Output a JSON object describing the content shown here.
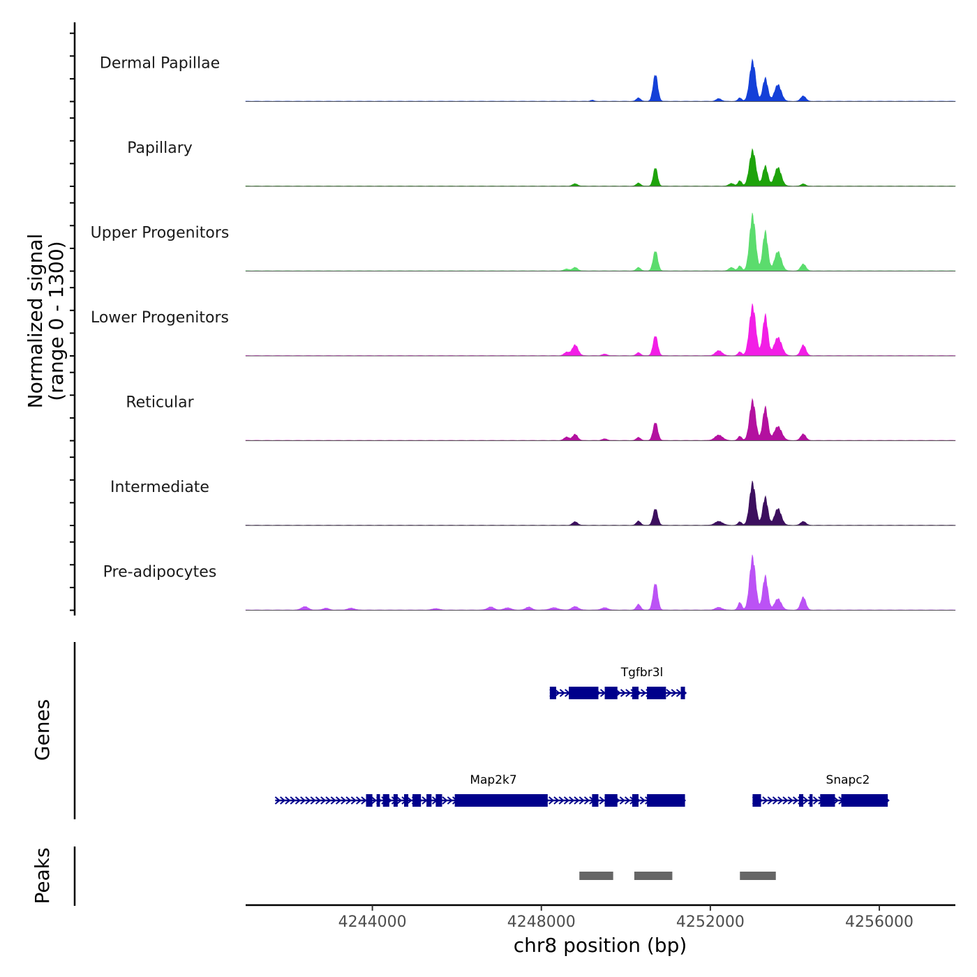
{
  "chart_data": {
    "type": "area",
    "xlabel": "chr8 position (bp)",
    "ylabel_line1": "Normalized signal",
    "ylabel_line2": "(range 0 - 1300)",
    "y_range": [
      0,
      1300
    ],
    "xlim": [
      4241000,
      4257800
    ],
    "x_ticks": [
      4244000,
      4248000,
      4252000,
      4256000
    ],
    "x_tick_labels": [
      "4244000",
      "4248000",
      "4252000",
      "4256000"
    ],
    "tracks_label_genes": "Genes",
    "tracks_label_peaks": "Peaks",
    "series": [
      {
        "name": "Dermal Papillae",
        "color": "#1440d8",
        "peaks": [
          [
            4249200,
            30,
            40
          ],
          [
            4250300,
            90,
            50
          ],
          [
            4250700,
            700,
            55
          ],
          [
            4252200,
            70,
            60
          ],
          [
            4252700,
            90,
            45
          ],
          [
            4253000,
            1050,
            70
          ],
          [
            4253300,
            600,
            60
          ],
          [
            4253600,
            430,
            80
          ],
          [
            4254200,
            140,
            60
          ]
        ]
      },
      {
        "name": "Papillary",
        "color": "#1ea30b",
        "peaks": [
          [
            4248800,
            60,
            60
          ],
          [
            4250300,
            80,
            50
          ],
          [
            4250700,
            480,
            50
          ],
          [
            4252500,
            70,
            60
          ],
          [
            4252700,
            140,
            45
          ],
          [
            4253000,
            930,
            75
          ],
          [
            4253300,
            520,
            60
          ],
          [
            4253600,
            480,
            80
          ],
          [
            4254200,
            60,
            50
          ]
        ]
      },
      {
        "name": "Upper Progenitors",
        "color": "#5bdc6d",
        "peaks": [
          [
            4248600,
            50,
            60
          ],
          [
            4248800,
            90,
            60
          ],
          [
            4250300,
            90,
            50
          ],
          [
            4250700,
            520,
            55
          ],
          [
            4252500,
            90,
            60
          ],
          [
            4252700,
            130,
            45
          ],
          [
            4253000,
            1450,
            70
          ],
          [
            4253300,
            1020,
            60
          ],
          [
            4253600,
            500,
            80
          ],
          [
            4254200,
            180,
            60
          ]
        ]
      },
      {
        "name": "Lower Progenitors",
        "color": "#f21ee6",
        "peaks": [
          [
            4248600,
            90,
            60
          ],
          [
            4248800,
            280,
            70
          ],
          [
            4249500,
            40,
            60
          ],
          [
            4250300,
            80,
            50
          ],
          [
            4250700,
            520,
            55
          ],
          [
            4252200,
            130,
            80
          ],
          [
            4252700,
            100,
            45
          ],
          [
            4253000,
            1300,
            75
          ],
          [
            4253300,
            1050,
            60
          ],
          [
            4253600,
            470,
            90
          ],
          [
            4254200,
            280,
            60
          ]
        ]
      },
      {
        "name": "Reticular",
        "color": "#b3119f",
        "peaks": [
          [
            4248600,
            90,
            60
          ],
          [
            4248800,
            160,
            60
          ],
          [
            4249500,
            40,
            60
          ],
          [
            4250300,
            80,
            50
          ],
          [
            4250700,
            470,
            55
          ],
          [
            4252200,
            140,
            90
          ],
          [
            4252700,
            110,
            45
          ],
          [
            4253000,
            1040,
            70
          ],
          [
            4253300,
            860,
            60
          ],
          [
            4253600,
            360,
            90
          ],
          [
            4254200,
            170,
            60
          ]
        ]
      },
      {
        "name": "Intermediate",
        "color": "#3c0f5e",
        "peaks": [
          [
            4248800,
            90,
            60
          ],
          [
            4250300,
            110,
            50
          ],
          [
            4250700,
            430,
            55
          ],
          [
            4252200,
            100,
            90
          ],
          [
            4252700,
            90,
            45
          ],
          [
            4253000,
            1110,
            70
          ],
          [
            4253300,
            730,
            60
          ],
          [
            4253600,
            430,
            80
          ],
          [
            4254200,
            100,
            60
          ]
        ]
      },
      {
        "name": "Pre-adipocytes",
        "color": "#bb52f5",
        "peaks": [
          [
            4242400,
            90,
            80
          ],
          [
            4242900,
            50,
            70
          ],
          [
            4243500,
            50,
            80
          ],
          [
            4245500,
            40,
            80
          ],
          [
            4246800,
            80,
            80
          ],
          [
            4247200,
            60,
            80
          ],
          [
            4247700,
            80,
            70
          ],
          [
            4248300,
            60,
            100
          ],
          [
            4248800,
            90,
            80
          ],
          [
            4249500,
            60,
            80
          ],
          [
            4250300,
            150,
            50
          ],
          [
            4250700,
            700,
            55
          ],
          [
            4252200,
            70,
            80
          ],
          [
            4252700,
            200,
            45
          ],
          [
            4253000,
            1380,
            70
          ],
          [
            4253300,
            880,
            60
          ],
          [
            4253600,
            290,
            80
          ],
          [
            4254200,
            340,
            60
          ]
        ]
      }
    ],
    "genes": [
      {
        "name": "Tgfbr3l",
        "row": 1,
        "start": 4248200,
        "end": 4251400,
        "exons": [
          [
            4248200,
            4248350
          ],
          [
            4248650,
            4249350
          ],
          [
            4249500,
            4249800
          ],
          [
            4250150,
            4250300
          ],
          [
            4250500,
            4250950
          ],
          [
            4251300,
            4251400
          ]
        ]
      },
      {
        "name": "Map2k7",
        "row": 2,
        "start": 4241700,
        "end": 4251400,
        "exons": [
          [
            4243850,
            4244000
          ],
          [
            4244100,
            4244180
          ],
          [
            4244250,
            4244400
          ],
          [
            4244500,
            4244600
          ],
          [
            4244750,
            4244850
          ],
          [
            4244950,
            4245150
          ],
          [
            4245280,
            4245400
          ],
          [
            4245500,
            4245650
          ],
          [
            4245950,
            4248150
          ],
          [
            4249200,
            4249350
          ],
          [
            4249500,
            4249800
          ],
          [
            4250150,
            4250300
          ],
          [
            4250500,
            4251400
          ]
        ]
      },
      {
        "name": "Snapc2",
        "row": 2,
        "start": 4253000,
        "end": 4256200,
        "exons": [
          [
            4253000,
            4253200
          ],
          [
            4254100,
            4254200
          ],
          [
            4254350,
            4254420
          ],
          [
            4254600,
            4254950
          ],
          [
            4255100,
            4256200
          ]
        ]
      }
    ],
    "peak_regions": [
      [
        4248900,
        4249700
      ],
      [
        4250200,
        4251100
      ],
      [
        4252700,
        4253550
      ]
    ]
  }
}
